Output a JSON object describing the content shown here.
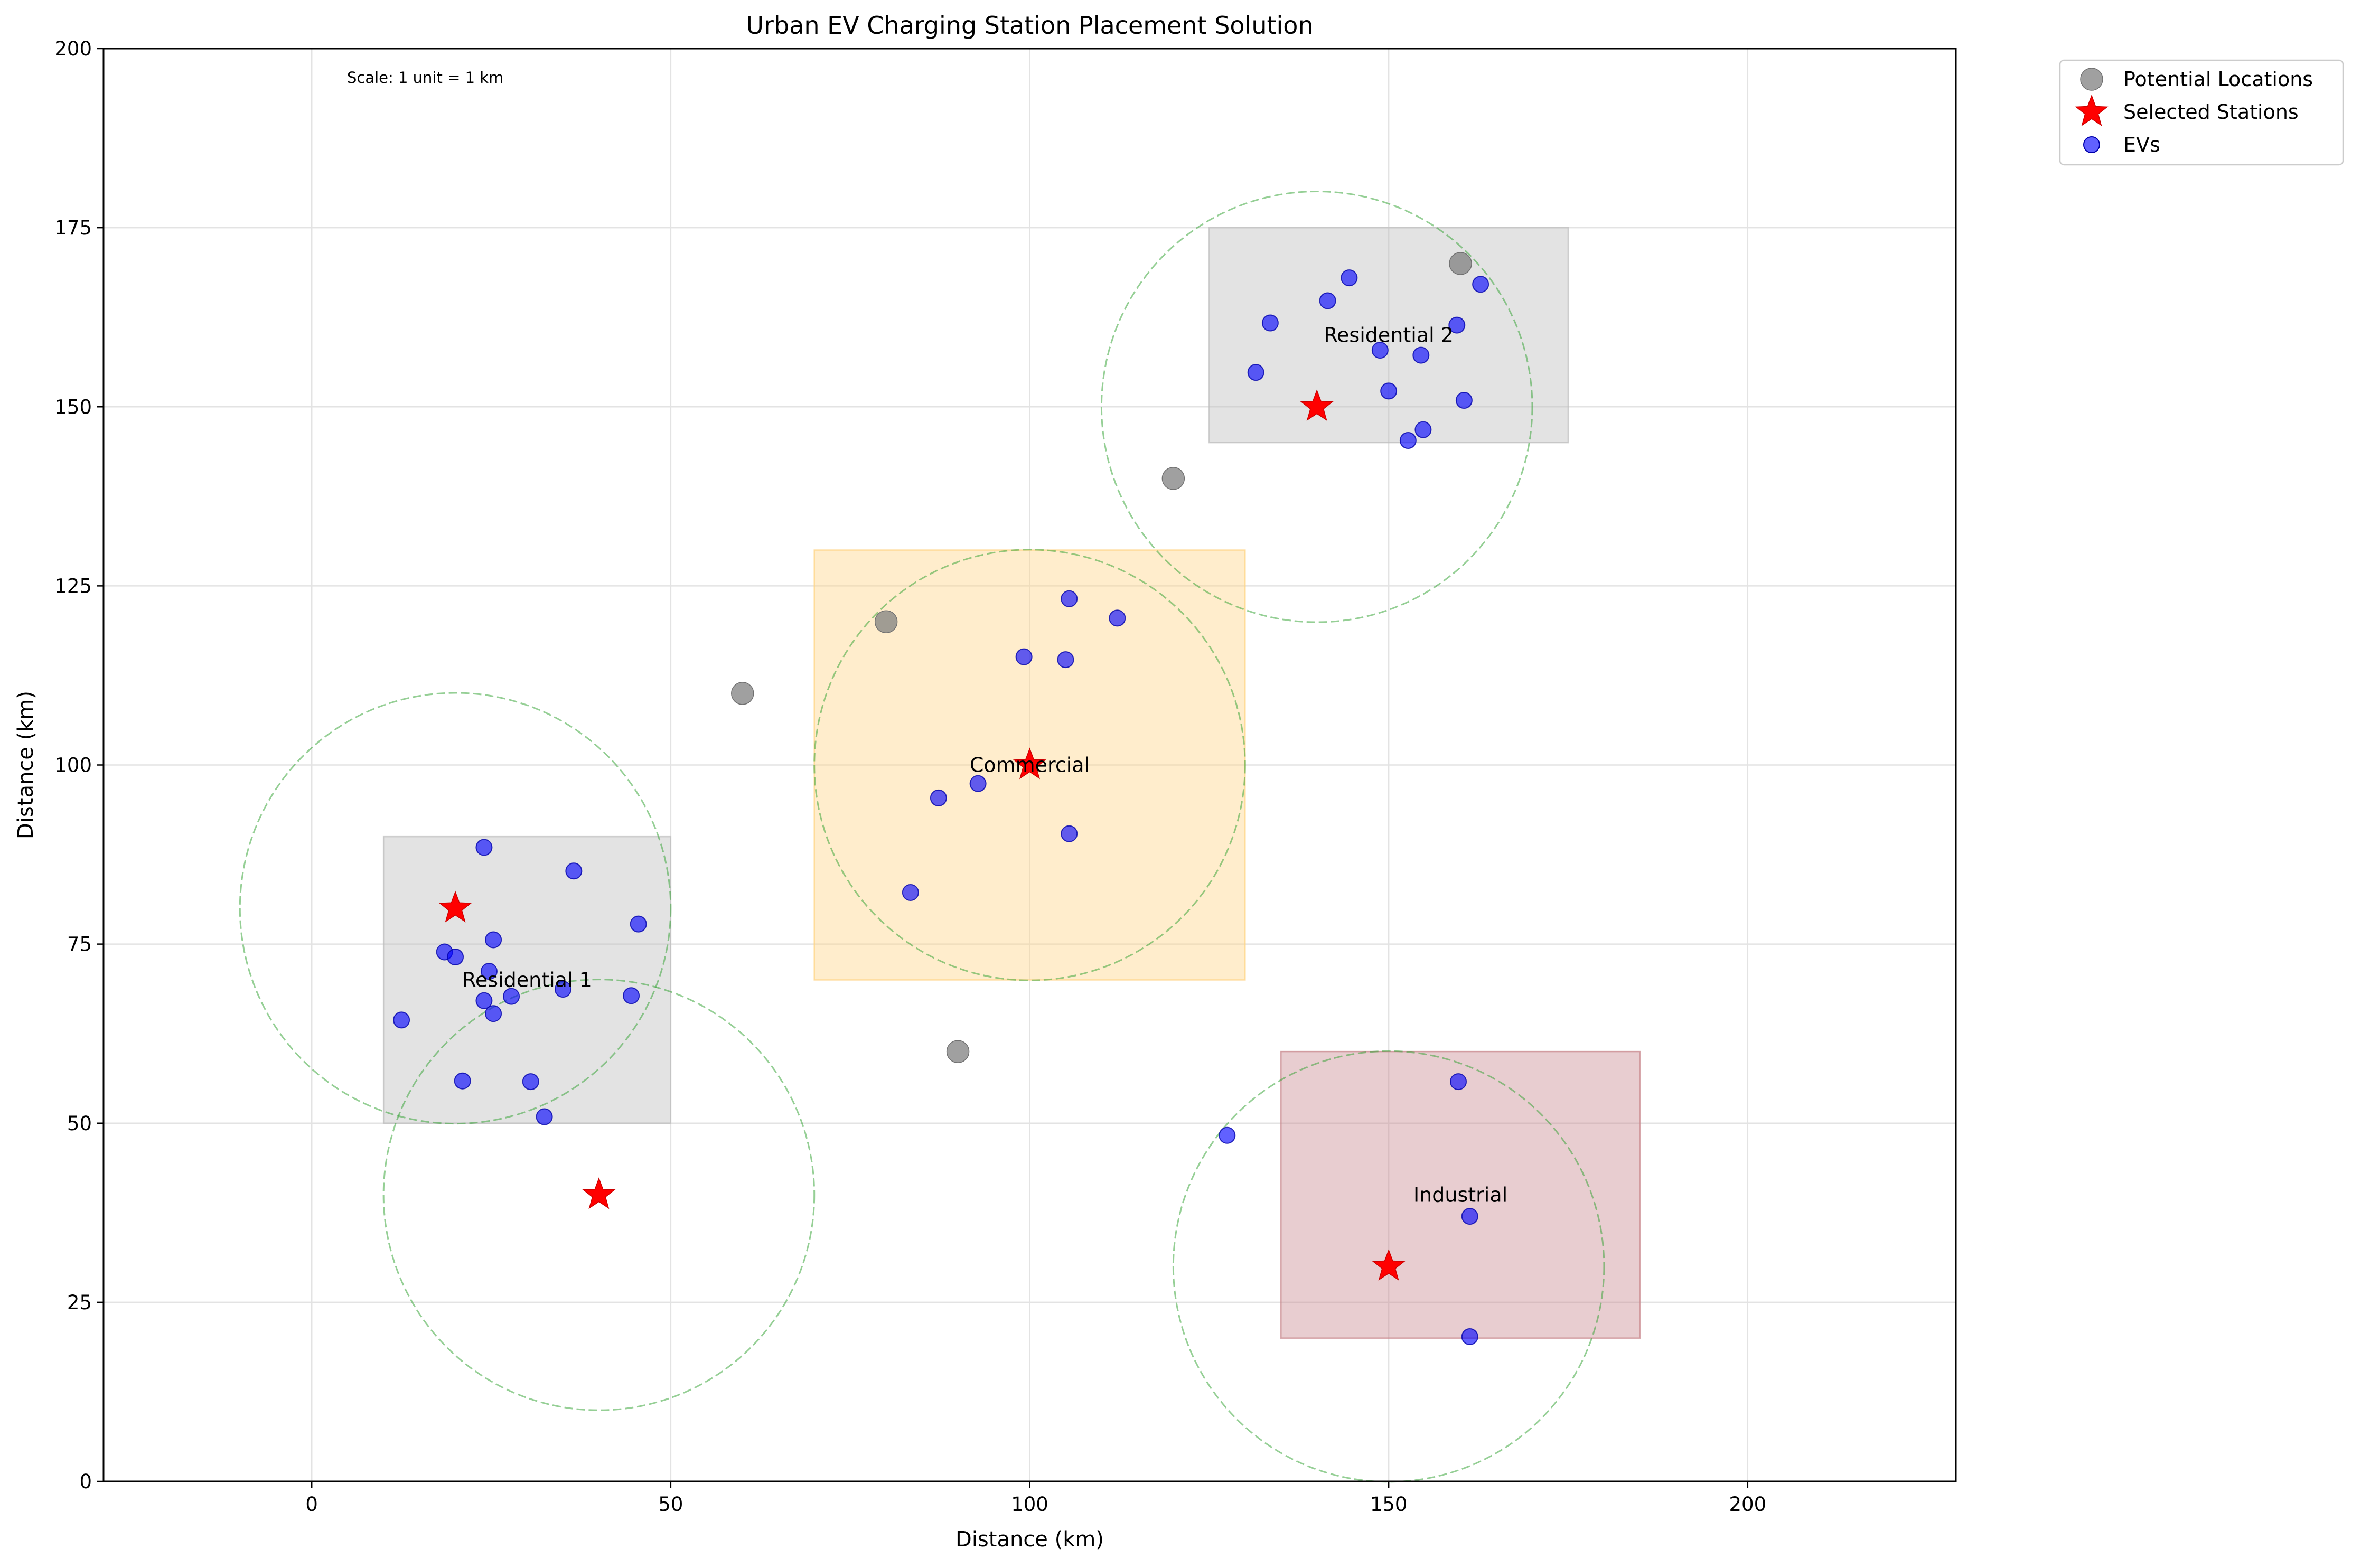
{
  "chart_data": {
    "type": "scatter",
    "title": "Urban EV Charging Station Placement Solution",
    "xlabel": "Distance (km)",
    "ylabel": "Distance (km)",
    "xlim": [
      -29,
      229
    ],
    "ylim": [
      0,
      200
    ],
    "xticks": [
      0,
      50,
      100,
      150,
      200
    ],
    "yticks": [
      0,
      25,
      50,
      75,
      100,
      125,
      150,
      175,
      200
    ],
    "grid": true,
    "legend_position": "outside top-right",
    "scale_note": "Scale: 1 unit = 1 km",
    "zones": [
      {
        "name": "Residential 1",
        "x0": 10,
        "x1": 50,
        "y0": 50,
        "y1": 90,
        "color": "#bdbdbd",
        "label_x": 30,
        "label_y": 70
      },
      {
        "name": "Commercial",
        "x0": 70,
        "x1": 130,
        "y0": 70,
        "y1": 130,
        "color": "#ffd485",
        "label_x": 100,
        "label_y": 100
      },
      {
        "name": "Residential 2",
        "x0": 125,
        "x1": 175,
        "y0": 145,
        "y1": 175,
        "color": "#bdbdbd",
        "label_x": 150,
        "label_y": 160
      },
      {
        "name": "Industrial",
        "x0": 135,
        "x1": 185,
        "y0": 20,
        "y1": 60,
        "color": "#c9898f",
        "label_x": 160,
        "label_y": 40
      }
    ],
    "coverage_radius": 30,
    "series": [
      {
        "name": "Potential Locations",
        "color": "#808080",
        "points": [
          [
            60,
            110
          ],
          [
            80,
            120
          ],
          [
            90,
            60
          ],
          [
            120,
            140
          ],
          [
            160,
            170
          ]
        ]
      },
      {
        "name": "Selected Stations",
        "color": "#ff0000",
        "points": [
          [
            20,
            80
          ],
          [
            40,
            40
          ],
          [
            100,
            100
          ],
          [
            140,
            150
          ],
          [
            150,
            30
          ]
        ]
      },
      {
        "name": "EVs",
        "color": "#0000ff",
        "points": [
          [
            24,
            88.5
          ],
          [
            36.5,
            85.2
          ],
          [
            45.5,
            77.8
          ],
          [
            18.5,
            73.9
          ],
          [
            20,
            73.2
          ],
          [
            25.3,
            75.6
          ],
          [
            24.7,
            71.2
          ],
          [
            12.5,
            64.4
          ],
          [
            24,
            67.1
          ],
          [
            27.8,
            67.7
          ],
          [
            25.3,
            65.3
          ],
          [
            35,
            68.7
          ],
          [
            44.5,
            67.8
          ],
          [
            21,
            55.9
          ],
          [
            30.5,
            55.8
          ],
          [
            32.4,
            50.9
          ],
          [
            105.5,
            123.2
          ],
          [
            112.2,
            120.5
          ],
          [
            99.2,
            115.1
          ],
          [
            105,
            114.7
          ],
          [
            92.8,
            97.4
          ],
          [
            87.3,
            95.4
          ],
          [
            105.5,
            90.4
          ],
          [
            83.4,
            82.2
          ],
          [
            144.5,
            168
          ],
          [
            162.8,
            167.1
          ],
          [
            141.5,
            164.8
          ],
          [
            133.5,
            161.7
          ],
          [
            159.5,
            161.4
          ],
          [
            148.8,
            157.9
          ],
          [
            154.5,
            157.2
          ],
          [
            131.5,
            154.8
          ],
          [
            150,
            152.2
          ],
          [
            160.5,
            150.9
          ],
          [
            154.8,
            146.8
          ],
          [
            152.7,
            145.3
          ],
          [
            159.7,
            55.8
          ],
          [
            127.5,
            48.3
          ],
          [
            161.3,
            37
          ],
          [
            161.3,
            20.2
          ]
        ]
      }
    ]
  }
}
